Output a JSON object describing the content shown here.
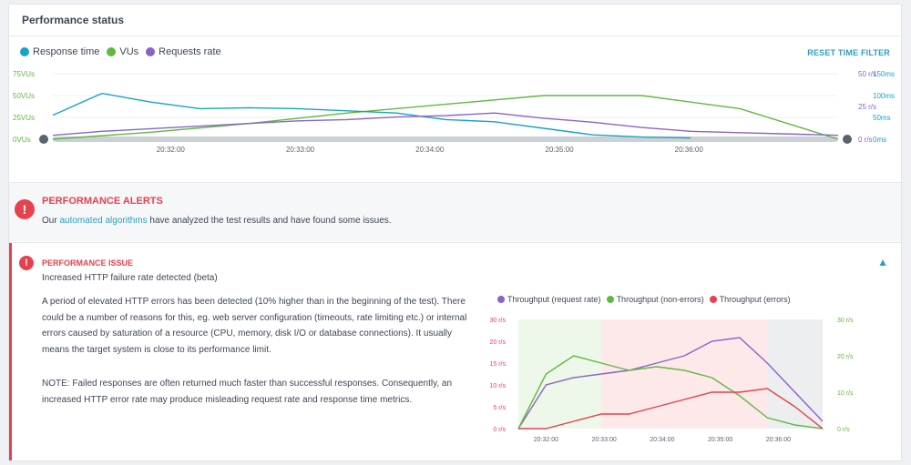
{
  "panel_title": "Performance status",
  "reset_label": "RESET TIME FILTER",
  "legend": [
    {
      "label": "Response time",
      "color": "#17a2c8"
    },
    {
      "label": "VUs",
      "color": "#5fb93f"
    },
    {
      "label": "Requests rate",
      "color": "#8b63c7"
    }
  ],
  "chart_data": [
    {
      "type": "line",
      "title": "",
      "x_ticks": [
        "20:32:00",
        "20:33:00",
        "20:34:00",
        "20:35:00",
        "20:36:00"
      ],
      "y_left_ticks": [
        "0VUs",
        "25VUs",
        "50VUs",
        "75VUs"
      ],
      "y_right_rate_ticks": [
        "0 r/s",
        "25 r/s",
        "50 r/s"
      ],
      "y_right_time_ticks": [
        "0ms",
        "50ms",
        "100ms",
        "150ms"
      ],
      "series": [
        {
          "name": "VUs",
          "color": "#5fb93f",
          "x_min": [
            0,
            1,
            2,
            3,
            4,
            5,
            6,
            7,
            8
          ],
          "values": [
            0,
            8,
            18,
            30,
            40,
            50,
            50,
            35,
            0
          ]
        },
        {
          "name": "Response time",
          "color": "#17a2c8",
          "x_min": [
            0,
            0.5,
            1,
            1.5,
            2,
            2.5,
            3,
            3.5,
            4,
            4.5,
            5,
            5.5,
            6,
            6.5
          ],
          "values": [
            55,
            105,
            85,
            70,
            72,
            70,
            65,
            60,
            45,
            40,
            25,
            10,
            5,
            3
          ]
        },
        {
          "name": "Requests rate",
          "color": "#8b63c7",
          "x_min": [
            0,
            0.5,
            1,
            1.5,
            2,
            2.5,
            3,
            3.5,
            4,
            4.5,
            5,
            5.5,
            6,
            6.5,
            7,
            7.5,
            8
          ],
          "values": [
            3,
            6,
            8,
            10,
            12,
            14,
            15,
            17,
            18,
            20,
            16,
            13,
            9,
            6,
            5,
            4,
            3
          ]
        }
      ]
    },
    {
      "type": "line",
      "title": "",
      "x_ticks": [
        "20:32:00",
        "20:33:00",
        "20:34:00",
        "20:35:00",
        "20:36:00"
      ],
      "y_left_ticks": [
        "0 r/s",
        "5 r/s",
        "10 r/s",
        "15 r/s",
        "20 r/s",
        "30 r/s"
      ],
      "y_right_ticks": [
        "0 r/s",
        "10 r/s",
        "20 r/s",
        "30 r/s"
      ],
      "series": [
        {
          "name": "Throughput (request rate)",
          "color": "#8b63c7",
          "x_min": [
            0,
            0.5,
            1,
            1.5,
            2,
            2.5,
            3,
            3.5,
            4,
            4.5,
            5,
            5.5
          ],
          "values": [
            0,
            12,
            14,
            15,
            16,
            18,
            20,
            24,
            25,
            18,
            10,
            2
          ]
        },
        {
          "name": "Throughput (non-errors)",
          "color": "#5fb93f",
          "x_min": [
            0,
            0.5,
            1,
            1.5,
            2,
            2.5,
            3,
            3.5,
            4,
            4.5,
            5,
            5.5
          ],
          "values": [
            0,
            15,
            20,
            18,
            16,
            17,
            16,
            14,
            9,
            3,
            1,
            0
          ]
        },
        {
          "name": "Throughput (errors)",
          "color": "#e8414e",
          "x_min": [
            0,
            0.5,
            1,
            1.5,
            2,
            2.5,
            3,
            3.5,
            4,
            4.5,
            5,
            5.5
          ],
          "values": [
            0,
            0,
            2,
            4,
            4,
            6,
            8,
            10,
            10,
            11,
            6,
            0
          ]
        }
      ]
    }
  ],
  "alerts": {
    "title": "PERFORMANCE ALERTS",
    "desc_prefix": "Our ",
    "desc_link": "automated algorithms",
    "desc_suffix": " have analyzed the test results and have found some issues."
  },
  "issue": {
    "title": "PERFORMANCE ISSUE",
    "subtitle": "Increased HTTP failure rate detected (beta)",
    "para1": "A period of elevated HTTP errors has been detected (10% higher than in the beginning of the test). There could be a number of reasons for this, eg. web server configuration (timeouts, rate limiting etc.) or internal errors caused by saturation of a resource (CPU, memory, disk I/O or database connections). It usually means the target system is close to its performance limit.",
    "para2": "NOTE: Failed responses are often returned much faster than successful responses. Consequently, an increased HTTP error rate may produce misleading request rate and response time metrics.",
    "legend": [
      {
        "label": "Throughput (request rate)",
        "color": "#8b63c7"
      },
      {
        "label": "Throughput (non-errors)",
        "color": "#5fb93f"
      },
      {
        "label": "Throughput (errors)",
        "color": "#e8414e"
      }
    ]
  }
}
